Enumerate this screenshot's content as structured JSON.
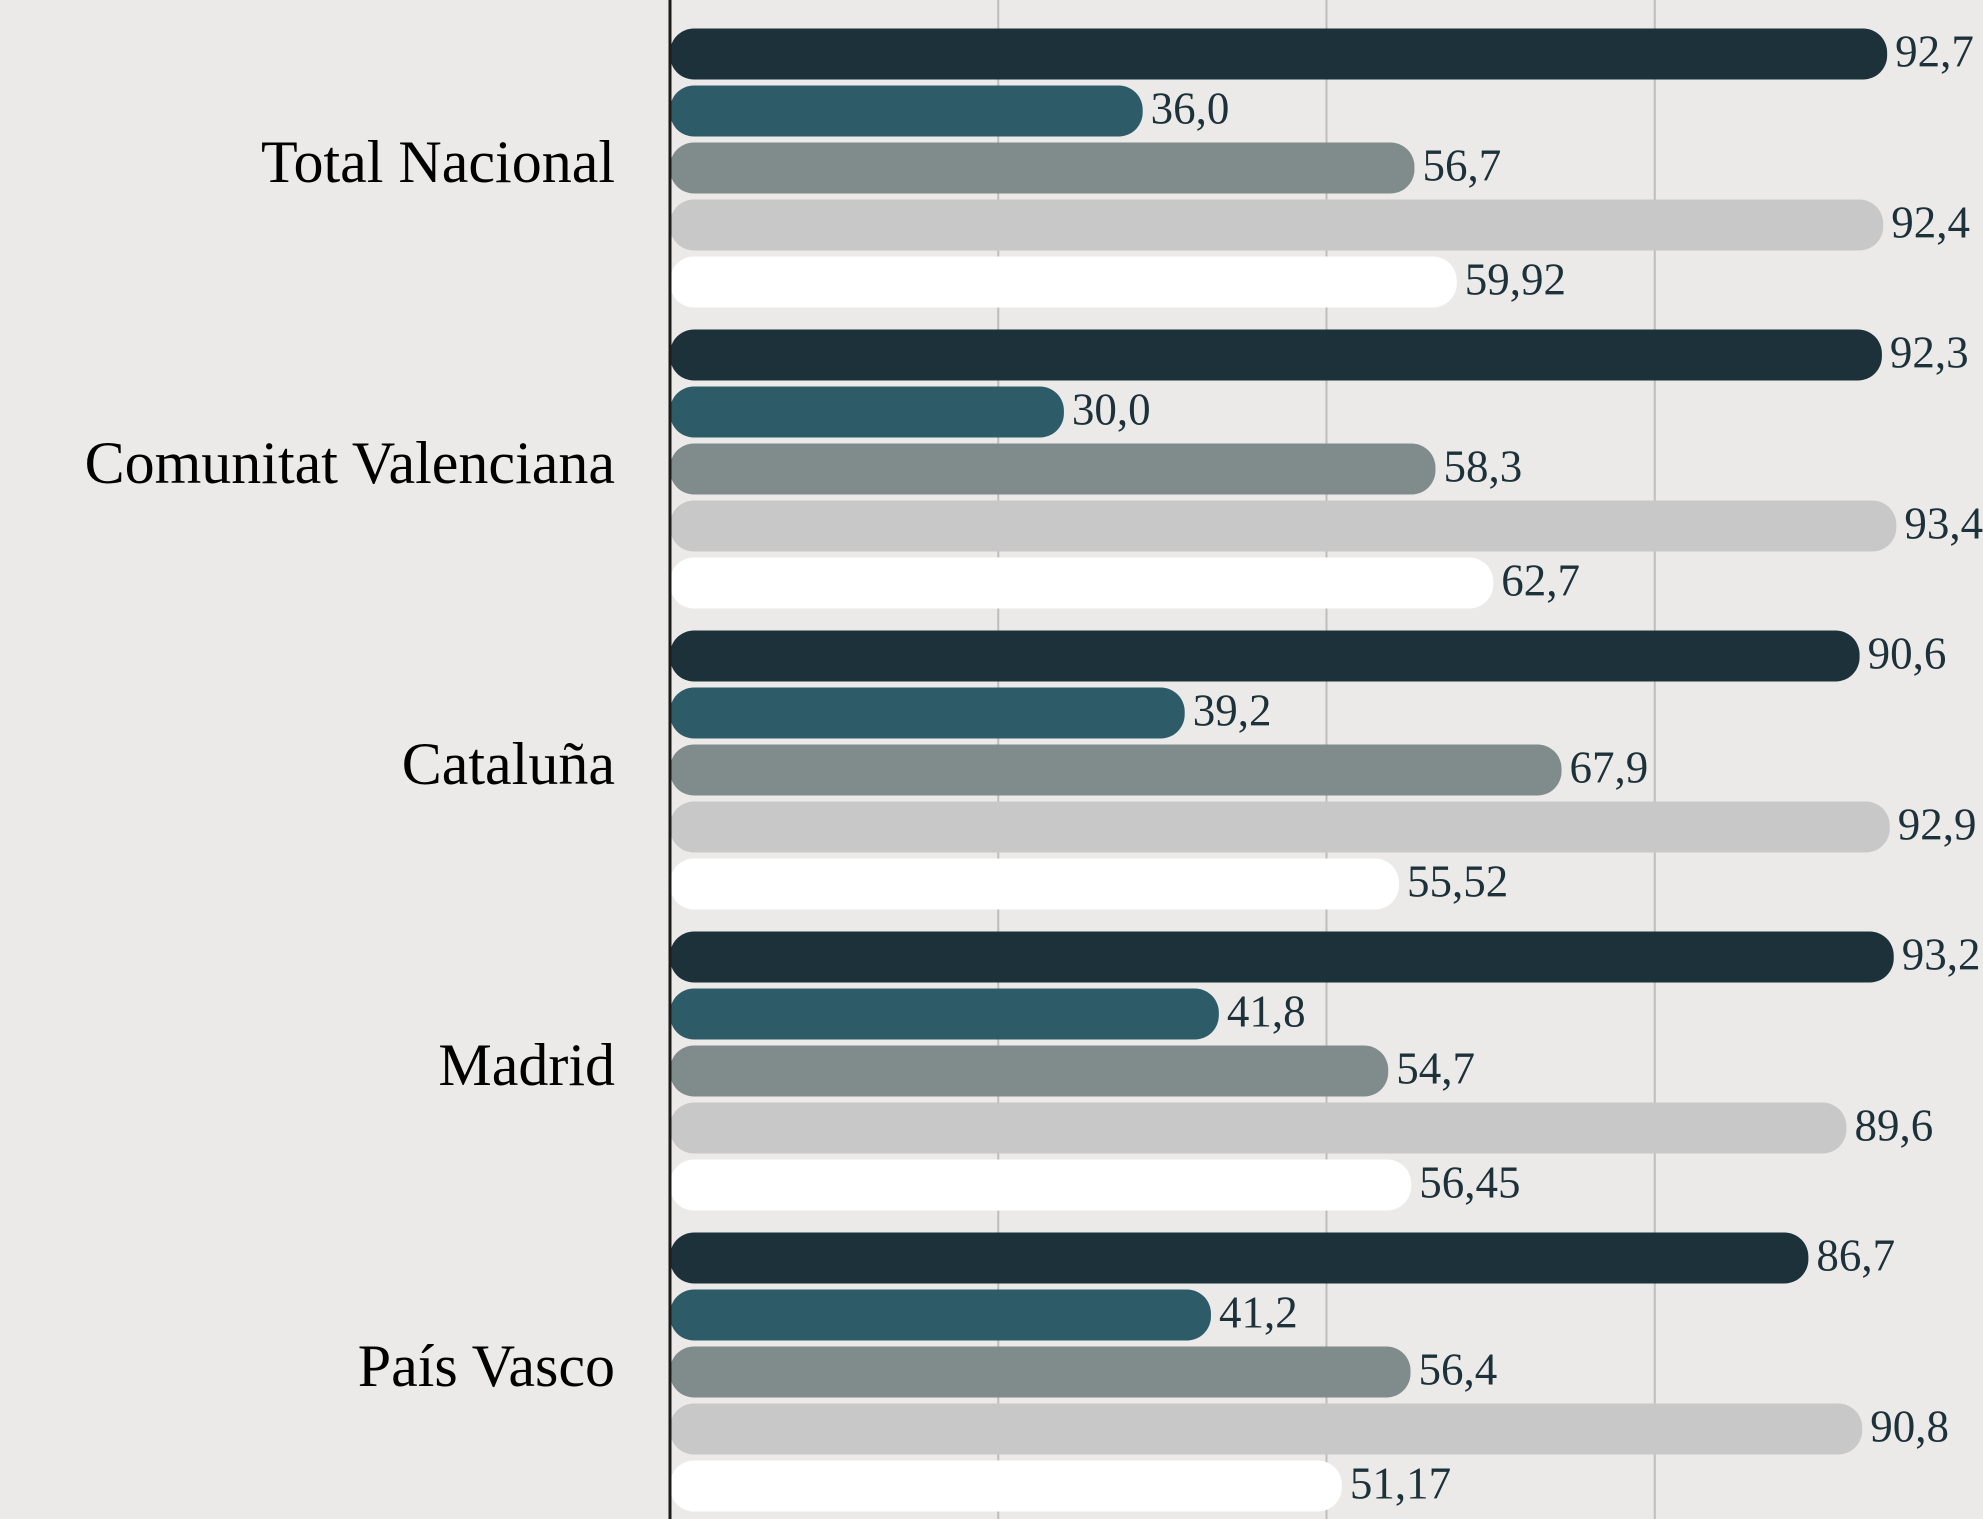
{
  "chart_data": {
    "type": "bar",
    "orientation": "horizontal",
    "categories": [
      "Total Nacional",
      "Comunitat Valenciana",
      "Cataluña",
      "Madrid",
      "País Vasco"
    ],
    "series": [
      {
        "color": "#1c3139",
        "values": [
          92.7,
          92.3,
          90.6,
          93.2,
          86.7
        ],
        "value_labels": [
          "92,7",
          "92,3",
          "90,6",
          "93,2",
          "86,7"
        ]
      },
      {
        "color": "#2d5c68",
        "values": [
          36.0,
          30.0,
          39.2,
          41.8,
          41.2
        ],
        "value_labels": [
          "36,0",
          "30,0",
          "39,2",
          "41,8",
          "41,2"
        ]
      },
      {
        "color": "#808c8c",
        "values": [
          56.7,
          58.3,
          67.9,
          54.7,
          56.4
        ],
        "value_labels": [
          "56,7",
          "58,3",
          "67,9",
          "54,7",
          "56,4"
        ]
      },
      {
        "color": "#c8c8c8",
        "values": [
          92.4,
          93.4,
          92.9,
          89.6,
          90.8
        ],
        "value_labels": [
          "92,4",
          "93,4",
          "92,9",
          "89,6",
          "90,8"
        ]
      },
      {
        "color": "#ffffff",
        "values": [
          59.92,
          62.7,
          55.52,
          56.45,
          51.17
        ],
        "value_labels": [
          "59,92",
          "62,7",
          "55,52",
          "56,45",
          "51,17"
        ]
      }
    ],
    "xlim": [
      0,
      100
    ],
    "xticks": [
      25,
      50,
      75
    ],
    "grid": true
  }
}
